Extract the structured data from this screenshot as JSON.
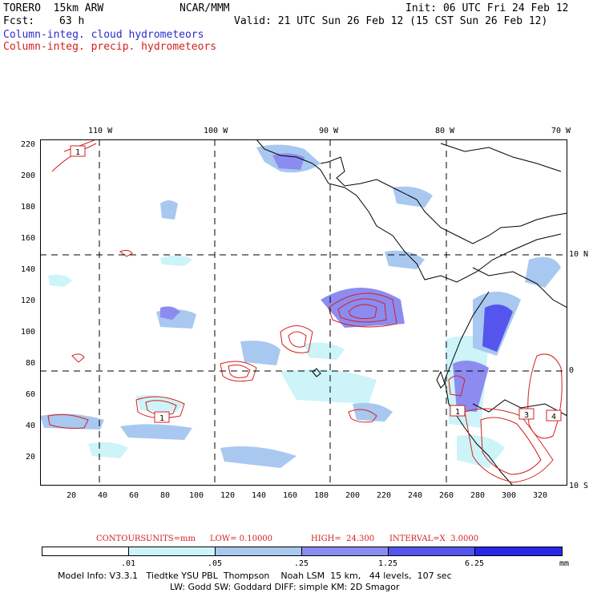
{
  "header": {
    "model": "TORERO  15km ARW",
    "org": "NCAR/MMM",
    "init": "Init: 06 UTC Fri 24 Feb 12",
    "fcst_label": "Fcst:",
    "fcst_value": "63 h",
    "valid": "Valid: 21 UTC Sun 26 Feb 12 (15 CST Sun 26 Feb 12)",
    "legend_cloud": "Column-integ. cloud hydrometeors",
    "legend_precip": "Column-integ. precip. hydrometeors"
  },
  "axes": {
    "lon_labels": [
      "110 W",
      "100 W",
      "90 W",
      "80 W",
      "70 W"
    ],
    "lat_labels": [
      "10 N",
      "0",
      "10 S"
    ],
    "y_ticks": [
      "220",
      "200",
      "180",
      "160",
      "140",
      "120",
      "100",
      "80",
      "60",
      "40",
      "20"
    ],
    "x_ticks": [
      "20",
      "40",
      "60",
      "80",
      "100",
      "120",
      "140",
      "160",
      "180",
      "200",
      "220",
      "240",
      "260",
      "280",
      "300",
      "320"
    ]
  },
  "box_labels": [
    "1",
    "1",
    "1",
    "3",
    "4"
  ],
  "contours_line": {
    "label": "CONTOURS:",
    "units": "UNITS=mm",
    "low": "LOW= 0.10000",
    "high": "HIGH=  24.300",
    "interval": "INTERVAL=X  3.0000"
  },
  "colorbar": {
    "ticks": [
      ".01",
      ".05",
      ".25",
      "1.25",
      "6.25"
    ],
    "unit": "mm",
    "colors": [
      "#ffffff",
      "#cdf4f8",
      "#a8c8f0",
      "#8c8cf0",
      "#5555ee",
      "#2828e8"
    ]
  },
  "footer": {
    "line1": "Model Info: V3.3.1   Tiedtke YSU PBL  Thompson    Noah LSM  15 km,   44 levels,  107 sec",
    "line2": "LW: Godd SW: Goddard DIFF: simple KM: 2D Smagor"
  },
  "colors": {
    "cloud_light": "#cdf4f8",
    "cloud_mid": "#a8c8f0",
    "cloud_dark": "#8c8cf0",
    "cloud_deep": "#5555ee",
    "precip": "#d42020",
    "coast": "#000000"
  }
}
